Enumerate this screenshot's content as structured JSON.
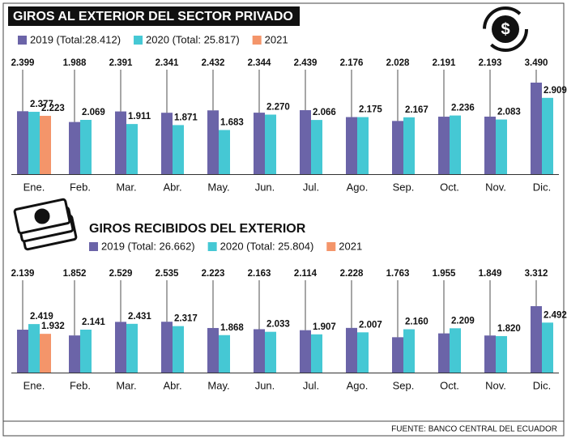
{
  "chart_data": [
    {
      "type": "bar",
      "title": "GIROS AL EXTERIOR DEL SECTOR PRIVADO",
      "categories": [
        "Ene.",
        "Feb.",
        "Mar.",
        "Abr.",
        "May.",
        "Jun.",
        "Jul.",
        "Ago.",
        "Sep.",
        "Oct.",
        "Nov.",
        "Dic."
      ],
      "series": [
        {
          "name": "2019 (Total:28.412)",
          "color": "#6b64a8",
          "values": [
            2399,
            1988,
            2391,
            2341,
            2432,
            2344,
            2439,
            2176,
            2028,
            2191,
            2193,
            3490
          ],
          "value_labels": [
            "2.399",
            "1.988",
            "2.391",
            "2.341",
            "2.432",
            "2.344",
            "2.439",
            "2.176",
            "2.028",
            "2.191",
            "2.193",
            "3.490"
          ]
        },
        {
          "name": "2020 (Total: 25.817)",
          "color": "#45c8d4",
          "values": [
            2377,
            2069,
            1911,
            1871,
            1683,
            2270,
            2066,
            2175,
            2167,
            2236,
            2083,
            2909
          ],
          "value_labels": [
            "2.377",
            "2.069",
            "1.911",
            "1.871",
            "1.683",
            "2.270",
            "2.066",
            "2.175",
            "2.167",
            "2.236",
            "2.083",
            "2.909"
          ]
        },
        {
          "name": "2021",
          "color": "#f4956a",
          "values": [
            2223,
            null,
            null,
            null,
            null,
            null,
            null,
            null,
            null,
            null,
            null,
            null
          ],
          "value_labels": [
            "2.223",
            null,
            null,
            null,
            null,
            null,
            null,
            null,
            null,
            null,
            null,
            null
          ]
        }
      ]
    },
    {
      "type": "bar",
      "title": "GIROS RECIBIDOS DEL EXTERIOR",
      "categories": [
        "Ene.",
        "Feb.",
        "Mar.",
        "Abr.",
        "May.",
        "Jun.",
        "Jul.",
        "Ago.",
        "Sep.",
        "Oct.",
        "Nov.",
        "Dic."
      ],
      "series": [
        {
          "name": "2019 (Total: 26.662)",
          "color": "#6b64a8",
          "values": [
            2139,
            1852,
            2529,
            2535,
            2223,
            2163,
            2114,
            2228,
            1763,
            1955,
            1849,
            3312
          ],
          "value_labels": [
            "2.139",
            "1.852",
            "2.529",
            "2.535",
            "2.223",
            "2.163",
            "2.114",
            "2.228",
            "1.763",
            "1.955",
            "1.849",
            "3.312"
          ]
        },
        {
          "name": "2020 (Total: 25.804)",
          "color": "#45c8d4",
          "values": [
            2419,
            2141,
            2431,
            2317,
            1868,
            2033,
            1907,
            2007,
            2160,
            2209,
            1820,
            2492
          ],
          "value_labels": [
            "2.419",
            "2.141",
            "2.431",
            "2.317",
            "1.868",
            "2.033",
            "1.907",
            "2.007",
            "2.160",
            "2.209",
            "1.820",
            "2.492"
          ]
        },
        {
          "name": "2021",
          "color": "#f4956a",
          "values": [
            1932,
            null,
            null,
            null,
            null,
            null,
            null,
            null,
            null,
            null,
            null,
            null
          ],
          "value_labels": [
            "1.932",
            null,
            null,
            null,
            null,
            null,
            null,
            null,
            null,
            null,
            null,
            null
          ]
        }
      ]
    }
  ],
  "source": "FUENTE: BANCO CENTRAL DEL ECUADOR"
}
